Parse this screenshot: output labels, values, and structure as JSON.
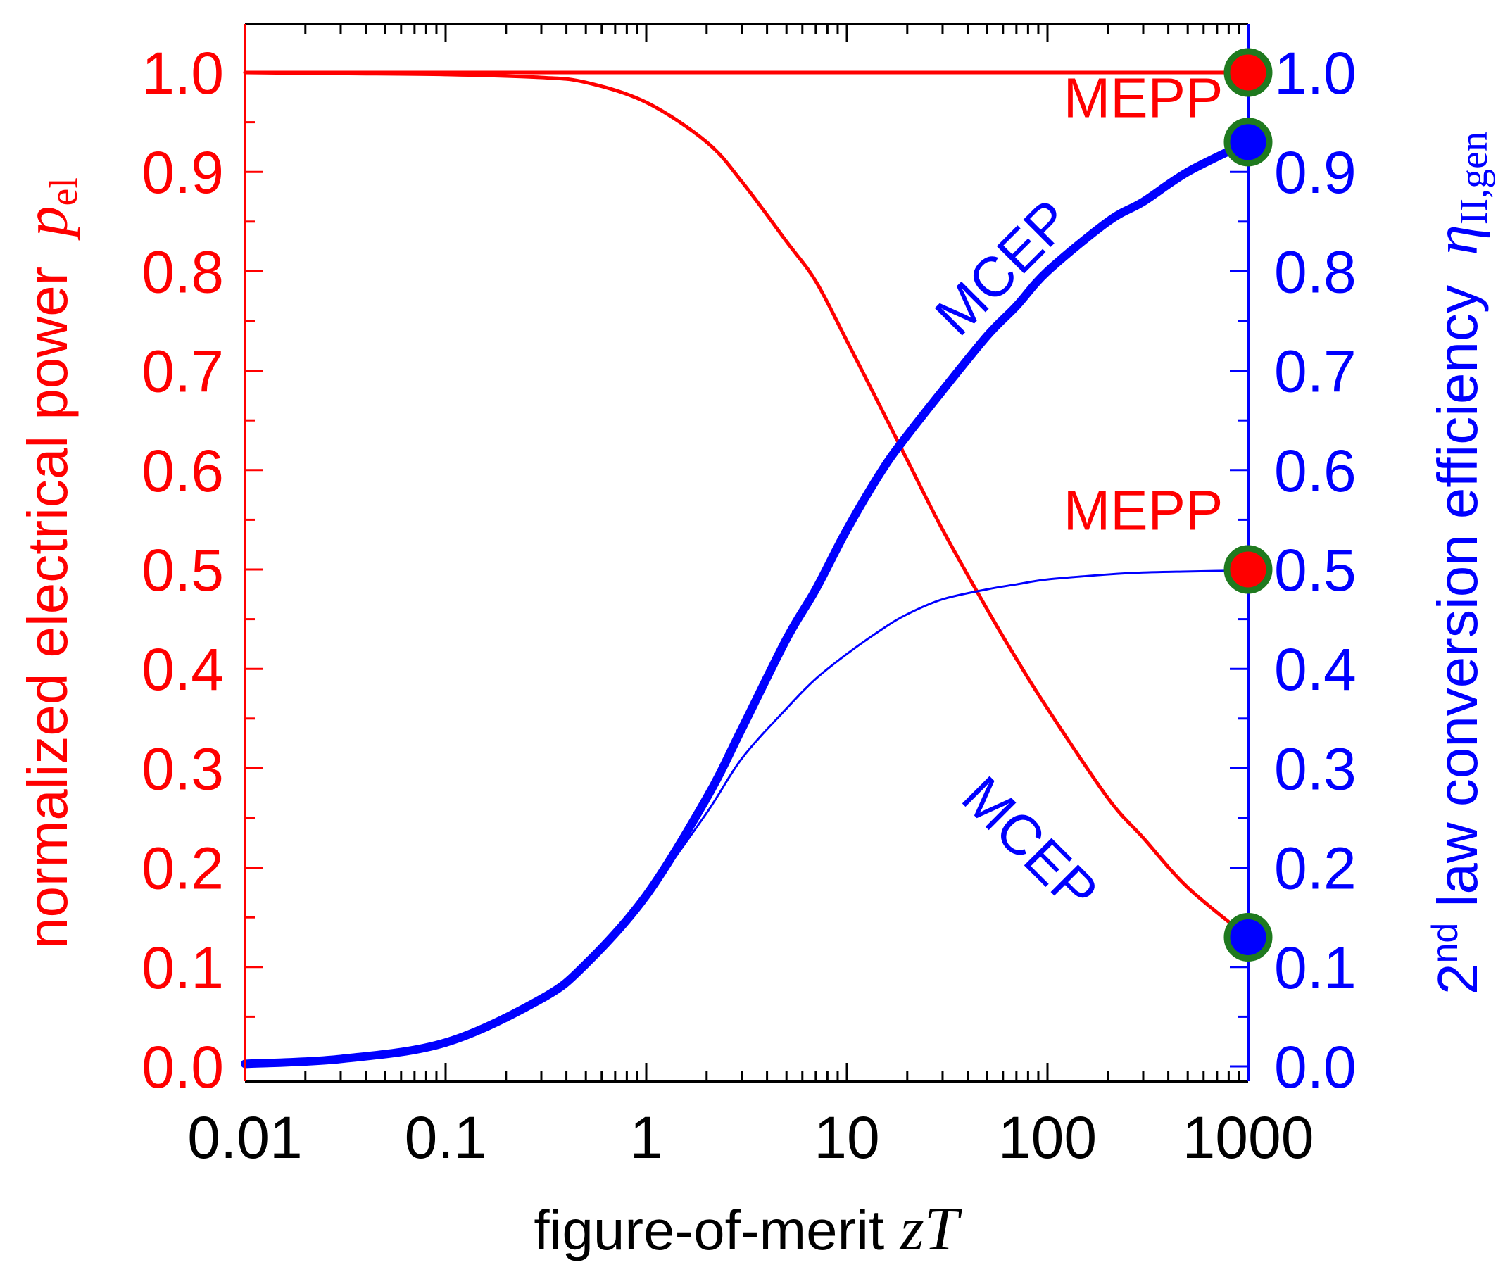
{
  "chart_data": {
    "type": "line",
    "x_axis": {
      "label_prefix": "figure-of-merit",
      "label_var": "zT",
      "scale": "log",
      "range": [
        0.01,
        1000
      ],
      "ticks": [
        {
          "value": 0.01,
          "label": "0.01"
        },
        {
          "value": 0.1,
          "label": "0.1"
        },
        {
          "value": 1,
          "label": "1"
        },
        {
          "value": 10,
          "label": "10"
        },
        {
          "value": 100,
          "label": "100"
        },
        {
          "value": 1000,
          "label": "1000"
        }
      ]
    },
    "y_left": {
      "label_text": "normalized electrical power",
      "label_var": "p",
      "label_sub": "el",
      "color": "#ff0000",
      "range": [
        0.0,
        1.0
      ],
      "ticks": [
        "0.0",
        "0.1",
        "0.2",
        "0.3",
        "0.4",
        "0.5",
        "0.6",
        "0.7",
        "0.8",
        "0.9",
        "1.0"
      ]
    },
    "y_right": {
      "label_text_pre": "2",
      "label_sup": "nd",
      "label_text": "law conversion efficiency",
      "label_var": "η",
      "label_sub": "II,gen",
      "color": "#0000ff",
      "range": [
        0.0,
        1.0
      ],
      "ticks": [
        "0.0",
        "0.1",
        "0.2",
        "0.3",
        "0.4",
        "0.5",
        "0.6",
        "0.7",
        "0.8",
        "0.9",
        "1.0"
      ]
    },
    "series": [
      {
        "name": "p_el at MEPP",
        "axis": "left",
        "color": "#ff0000",
        "style": "solid",
        "x": [
          0.01,
          1000
        ],
        "y": [
          1.0,
          1.0
        ]
      },
      {
        "name": "p_el at MCEP",
        "axis": "left",
        "color": "#ff0000",
        "style": "solid",
        "x": [
          0.01,
          0.03,
          0.1,
          0.3,
          0.5,
          1,
          2,
          3,
          5,
          7,
          10,
          15,
          20,
          30,
          50,
          70,
          100,
          200,
          300,
          500,
          1000
        ],
        "y": [
          1.0,
          0.999,
          0.998,
          0.995,
          0.99,
          0.97,
          0.93,
          0.89,
          0.83,
          0.79,
          0.73,
          0.66,
          0.61,
          0.54,
          0.46,
          0.41,
          0.36,
          0.27,
          0.23,
          0.18,
          0.13
        ]
      },
      {
        "name": "η at MCEP",
        "axis": "right",
        "color": "#0000ff",
        "style": "thick",
        "x": [
          0.01,
          0.03,
          0.1,
          0.3,
          0.5,
          1,
          2,
          3,
          5,
          7,
          10,
          15,
          20,
          30,
          50,
          70,
          100,
          200,
          300,
          500,
          1000
        ],
        "y": [
          0.0025,
          0.0075,
          0.024,
          0.068,
          0.103,
          0.172,
          0.27,
          0.34,
          0.43,
          0.48,
          0.54,
          0.6,
          0.635,
          0.68,
          0.735,
          0.765,
          0.8,
          0.85,
          0.87,
          0.9,
          0.93
        ]
      },
      {
        "name": "η at MEPP",
        "axis": "right",
        "color": "#0000ff",
        "style": "thin",
        "x": [
          1,
          2,
          3,
          5,
          7,
          10,
          15,
          20,
          30,
          50,
          70,
          100,
          200,
          300,
          500,
          1000
        ],
        "y": [
          0.17,
          0.255,
          0.31,
          0.36,
          0.39,
          0.415,
          0.44,
          0.455,
          0.47,
          0.48,
          0.485,
          0.49,
          0.495,
          0.497,
          0.498,
          0.499
        ]
      }
    ],
    "end_markers": [
      {
        "x": 1000,
        "y": 1.0,
        "fill": "#ff0000",
        "ring": "#1f7a1f"
      },
      {
        "x": 1000,
        "y": 0.93,
        "fill": "#0000ff",
        "ring": "#1f7a1f"
      },
      {
        "x": 1000,
        "y": 0.5,
        "fill": "#ff0000",
        "ring": "#1f7a1f"
      },
      {
        "x": 1000,
        "y": 0.13,
        "fill": "#0000ff",
        "ring": "#1f7a1f"
      }
    ],
    "annotations": [
      {
        "text": "MEPP",
        "color": "#ff0000",
        "anchor_x": 300,
        "anchor_y": 0.955,
        "rotation": 0
      },
      {
        "text": "MCEP",
        "color": "#0000ff",
        "anchor_x": 70,
        "anchor_y": 0.79,
        "rotation": -45
      },
      {
        "text": "MEPP",
        "color": "#ff0000",
        "anchor_x": 300,
        "anchor_y": 0.54,
        "rotation": 0
      },
      {
        "text": "MCEP",
        "color": "#0000ff",
        "anchor_x": 70,
        "anchor_y": 0.21,
        "rotation": 45
      }
    ]
  }
}
